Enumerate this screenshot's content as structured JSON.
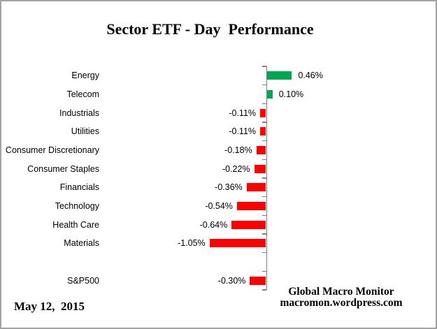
{
  "title": "Sector ETF - Day  Performance",
  "footer": {
    "date": "May 12,  2015",
    "credit_line1": "Global Macro Monitor",
    "credit_line2": "macromon.wordpress.com"
  },
  "chart_data": {
    "type": "bar",
    "orientation": "horizontal",
    "title": "Sector ETF - Day  Performance",
    "xlabel": "",
    "ylabel": "",
    "grid": false,
    "legend": false,
    "value_unit": "%",
    "categories": [
      "Energy",
      "Telecom",
      "Industrials",
      "Utilities",
      "Consumer Discretionary",
      "Consumer Staples",
      "Financials",
      "Technology",
      "Health Care",
      "Materials",
      "",
      "S&P500"
    ],
    "values": [
      0.46,
      0.1,
      -0.11,
      -0.11,
      -0.18,
      -0.22,
      -0.36,
      -0.54,
      -0.64,
      -1.05,
      null,
      -0.3
    ],
    "value_labels": [
      "0.46%",
      "0.10%",
      "-0.11%",
      "-0.11%",
      "-0.18%",
      "-0.22%",
      "-0.36%",
      "-0.54%",
      "-0.64%",
      "-1.05%",
      "",
      "-0.30%"
    ],
    "colors": {
      "positive": "#00A651",
      "negative": "#FF0000",
      "axis": "#808080",
      "text": "#000000",
      "border": "#A3A3A3"
    }
  }
}
